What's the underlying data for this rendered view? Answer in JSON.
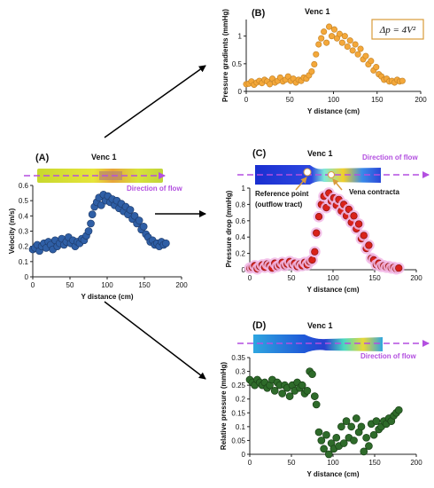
{
  "chart_data": [
    {
      "panel": "A",
      "type": "scatter",
      "title": "Venc 1",
      "xlabel": "Y distance (cm)",
      "ylabel": "Velocity (m/s)",
      "xlim": [
        0,
        200
      ],
      "ylim": [
        0,
        0.6
      ],
      "xticks": [
        0,
        50,
        100,
        150,
        200
      ],
      "yticks": [
        0,
        0.1,
        0.2,
        0.3,
        0.4,
        0.5,
        0.6
      ],
      "yticklabels": [
        "0",
        "0.1",
        "0.2",
        "0.3",
        "0.4",
        "0.5",
        "0.6"
      ],
      "color": "#2f5fa6",
      "stroke": "#1f3d6e",
      "glow": "",
      "flow_label": "Direction of flow",
      "x": [
        0,
        3,
        6,
        9,
        12,
        15,
        18,
        21,
        24,
        27,
        30,
        33,
        36,
        39,
        42,
        45,
        48,
        51,
        54,
        57,
        60,
        63,
        66,
        69,
        72,
        75,
        78,
        80,
        83,
        86,
        89,
        92,
        95,
        98,
        101,
        104,
        107,
        110,
        113,
        116,
        119,
        122,
        125,
        128,
        131,
        134,
        137,
        140,
        143,
        146,
        149,
        152,
        155,
        158,
        161,
        164,
        167,
        170,
        173,
        176,
        179
      ],
      "y": [
        0.18,
        0.19,
        0.21,
        0.17,
        0.2,
        0.22,
        0.19,
        0.23,
        0.21,
        0.18,
        0.24,
        0.2,
        0.22,
        0.25,
        0.21,
        0.23,
        0.26,
        0.22,
        0.24,
        0.2,
        0.23,
        0.22,
        0.25,
        0.24,
        0.27,
        0.3,
        0.35,
        0.41,
        0.46,
        0.49,
        0.52,
        0.47,
        0.54,
        0.5,
        0.53,
        0.49,
        0.51,
        0.47,
        0.5,
        0.45,
        0.48,
        0.43,
        0.46,
        0.41,
        0.44,
        0.38,
        0.4,
        0.35,
        0.37,
        0.31,
        0.33,
        0.28,
        0.26,
        0.23,
        0.24,
        0.21,
        0.22,
        0.2,
        0.23,
        0.21,
        0.22
      ]
    },
    {
      "panel": "B",
      "type": "scatter",
      "title": "Venc 1",
      "xlabel": "Y distance (cm)",
      "ylabel": "Pressure gradients (mmHg)",
      "xlim": [
        0,
        200
      ],
      "ylim": [
        0,
        1.3
      ],
      "xticks": [
        0,
        50,
        100,
        150,
        200
      ],
      "yticks": [
        0,
        0.5,
        1
      ],
      "yticklabels": [
        "0",
        "0.5",
        "1"
      ],
      "color": "#f4a83a",
      "stroke": "#c7862a",
      "glow": "",
      "equation": "Δp = 4V²",
      "x": [
        0,
        3,
        6,
        9,
        12,
        15,
        18,
        21,
        24,
        27,
        30,
        33,
        36,
        39,
        42,
        45,
        48,
        51,
        54,
        57,
        60,
        63,
        66,
        69,
        72,
        75,
        78,
        80,
        83,
        86,
        89,
        92,
        95,
        98,
        101,
        104,
        107,
        110,
        113,
        116,
        119,
        122,
        125,
        128,
        131,
        134,
        137,
        140,
        143,
        146,
        149,
        152,
        155,
        158,
        161,
        164,
        167,
        170,
        173,
        176,
        179
      ],
      "y": [
        0.13,
        0.14,
        0.18,
        0.12,
        0.16,
        0.19,
        0.15,
        0.21,
        0.18,
        0.13,
        0.23,
        0.16,
        0.19,
        0.25,
        0.18,
        0.21,
        0.27,
        0.19,
        0.23,
        0.16,
        0.21,
        0.19,
        0.25,
        0.23,
        0.29,
        0.36,
        0.49,
        0.67,
        0.85,
        0.96,
        1.08,
        0.88,
        1.17,
        1.0,
        1.12,
        0.96,
        1.04,
        0.88,
        1.0,
        0.81,
        0.92,
        0.74,
        0.85,
        0.67,
        0.77,
        0.58,
        0.64,
        0.49,
        0.55,
        0.38,
        0.44,
        0.31,
        0.27,
        0.21,
        0.23,
        0.18,
        0.19,
        0.16,
        0.21,
        0.18,
        0.19
      ]
    },
    {
      "panel": "C",
      "type": "scatter",
      "title": "Venc 1",
      "xlabel": "Y distance (cm)",
      "ylabel": "Pressure drop (mmHg)",
      "xlim": [
        0,
        200
      ],
      "ylim": [
        0,
        1
      ],
      "xticks": [
        0,
        50,
        100,
        150,
        200
      ],
      "yticks": [
        0,
        0.2,
        0.4,
        0.6,
        0.8,
        1
      ],
      "yticklabels": [
        "0",
        "0.2",
        "0.4",
        "0.6",
        "0.8",
        "1"
      ],
      "color": "#d9211a",
      "stroke": "#8a1410",
      "glow": "#f2b8e6",
      "flow_label": "Direction of flow",
      "annotation_ref": "Reference point",
      "annotation_ref2": "(outflow tract)",
      "annotation_vena": "Vena contracta",
      "x": [
        0,
        3,
        6,
        9,
        12,
        15,
        18,
        21,
        24,
        27,
        30,
        33,
        36,
        39,
        42,
        45,
        48,
        51,
        54,
        57,
        60,
        63,
        66,
        69,
        72,
        75,
        78,
        80,
        83,
        86,
        89,
        92,
        95,
        98,
        101,
        104,
        107,
        110,
        113,
        116,
        119,
        122,
        125,
        128,
        131,
        134,
        137,
        140,
        143,
        146,
        149,
        152,
        155,
        158,
        161,
        164,
        167,
        170,
        173,
        176,
        179
      ],
      "y": [
        0.02,
        0.03,
        0.05,
        0.01,
        0.04,
        0.06,
        0.03,
        0.07,
        0.05,
        0.02,
        0.08,
        0.04,
        0.06,
        0.09,
        0.05,
        0.07,
        0.1,
        0.06,
        0.08,
        0.04,
        0.07,
        0.05,
        0.09,
        0.06,
        0.1,
        0.12,
        0.22,
        0.45,
        0.65,
        0.8,
        0.9,
        0.76,
        0.94,
        0.84,
        0.88,
        0.79,
        0.86,
        0.72,
        0.8,
        0.66,
        0.74,
        0.58,
        0.66,
        0.5,
        0.56,
        0.38,
        0.42,
        0.26,
        0.3,
        0.14,
        0.12,
        0.06,
        0.08,
        0.04,
        0.05,
        0.03,
        0.04,
        0.02,
        0.03,
        0.01,
        0.02
      ]
    },
    {
      "panel": "D",
      "type": "scatter",
      "title": "Venc 1",
      "xlabel": "Y distance (cm)",
      "ylabel": "Relative pressure (mmHg)",
      "xlim": [
        0,
        200
      ],
      "ylim": [
        0,
        0.35
      ],
      "xticks": [
        0,
        50,
        100,
        150,
        200
      ],
      "yticks": [
        0,
        0.05,
        0.1,
        0.15,
        0.2,
        0.25,
        0.3,
        0.35
      ],
      "yticklabels": [
        "0",
        "0.05",
        "0.1",
        "0.15",
        "0.2",
        "0.25",
        "0.3",
        "0.35"
      ],
      "color": "#2e6b2a",
      "stroke": "#1a4017",
      "glow": "",
      "flow_label": "Direction of flow",
      "x": [
        0,
        3,
        6,
        9,
        12,
        15,
        18,
        21,
        24,
        27,
        30,
        33,
        36,
        39,
        42,
        45,
        48,
        51,
        54,
        57,
        60,
        63,
        66,
        69,
        72,
        75,
        78,
        80,
        83,
        86,
        89,
        92,
        95,
        98,
        101,
        104,
        107,
        110,
        113,
        116,
        119,
        122,
        125,
        128,
        131,
        134,
        137,
        140,
        143,
        146,
        149,
        152,
        155,
        158,
        161,
        164,
        167,
        170,
        173,
        176,
        179
      ],
      "y": [
        0.27,
        0.26,
        0.25,
        0.27,
        0.26,
        0.25,
        0.26,
        0.24,
        0.25,
        0.27,
        0.23,
        0.26,
        0.25,
        0.22,
        0.25,
        0.24,
        0.21,
        0.25,
        0.23,
        0.26,
        0.24,
        0.25,
        0.22,
        0.23,
        0.3,
        0.29,
        0.21,
        0.18,
        0.08,
        0.05,
        0.02,
        0.07,
        0.0,
        0.04,
        0.02,
        0.06,
        0.03,
        0.1,
        0.04,
        0.12,
        0.06,
        0.1,
        0.05,
        0.13,
        0.08,
        0.1,
        0.01,
        0.06,
        0.03,
        0.11,
        0.07,
        0.12,
        0.09,
        0.1,
        0.12,
        0.11,
        0.13,
        0.12,
        0.14,
        0.15,
        0.16
      ]
    }
  ]
}
